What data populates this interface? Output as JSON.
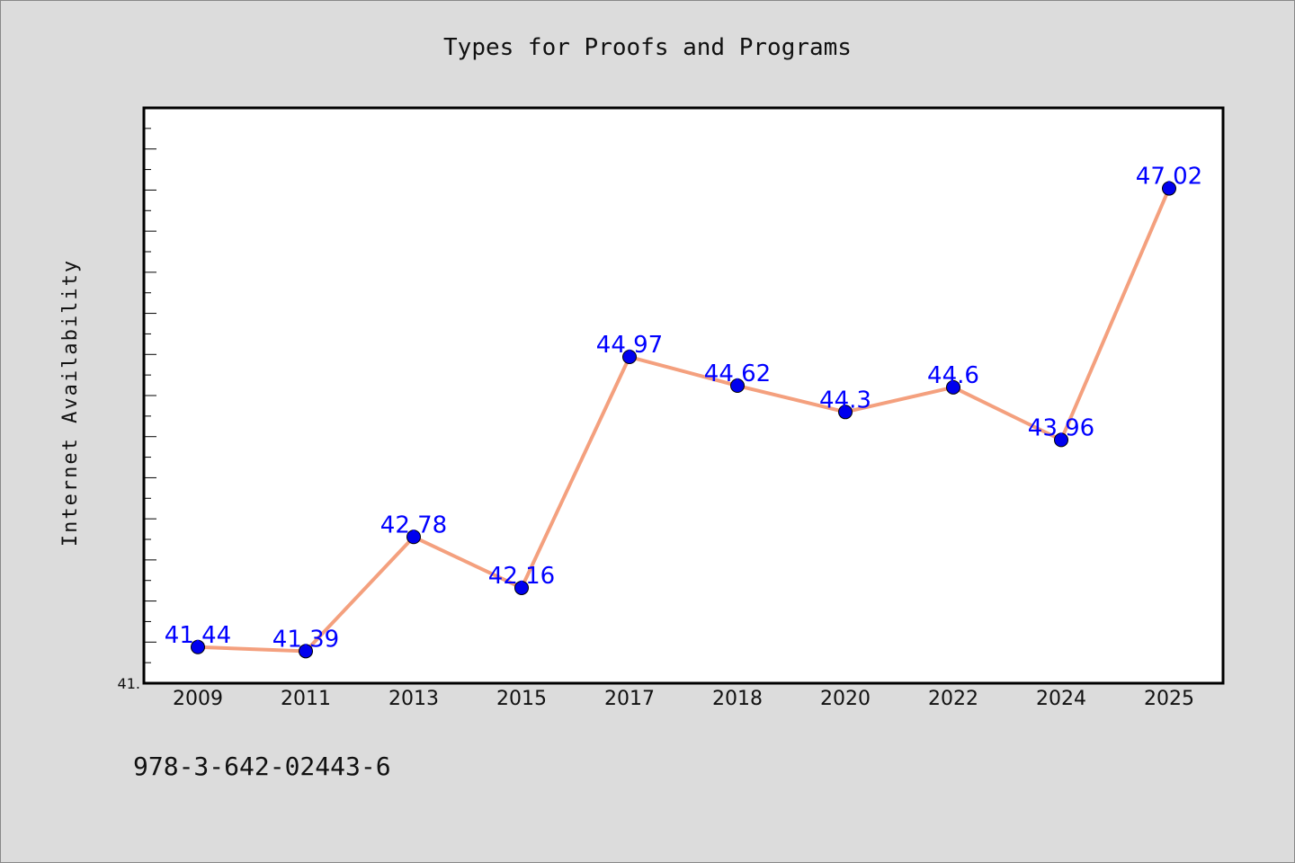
{
  "chart_data": {
    "type": "line",
    "title": "Types for Proofs and Programs",
    "xlabel": "",
    "ylabel": "Internet Availability",
    "categories": [
      "2009",
      "2011",
      "2013",
      "2015",
      "2017",
      "2018",
      "2020",
      "2022",
      "2024",
      "2025"
    ],
    "series": [
      {
        "values": [
          41.44,
          41.39,
          42.78,
          42.16,
          44.97,
          44.62,
          44.3,
          44.6,
          43.96,
          47.02
        ],
        "labels": [
          "41.44",
          "41.39",
          "42.78",
          "42.16",
          "44.97",
          "44.62",
          "44.3",
          "44.6",
          "43.96",
          "47.02"
        ],
        "line_color": "#f4a07e",
        "marker_color": "#0000ee",
        "label_color": "#0000ff"
      }
    ],
    "ylim": [
      41.0,
      48.0
    ],
    "y_tick_labels": [
      {
        "value": 41.0,
        "label": "41."
      }
    ],
    "grid": false,
    "legend": "none",
    "footer": "978-3-642-02443-6",
    "colors": {
      "background": "#dcdcdc",
      "plot_background": "#ffffff",
      "axis": "#000000"
    }
  }
}
